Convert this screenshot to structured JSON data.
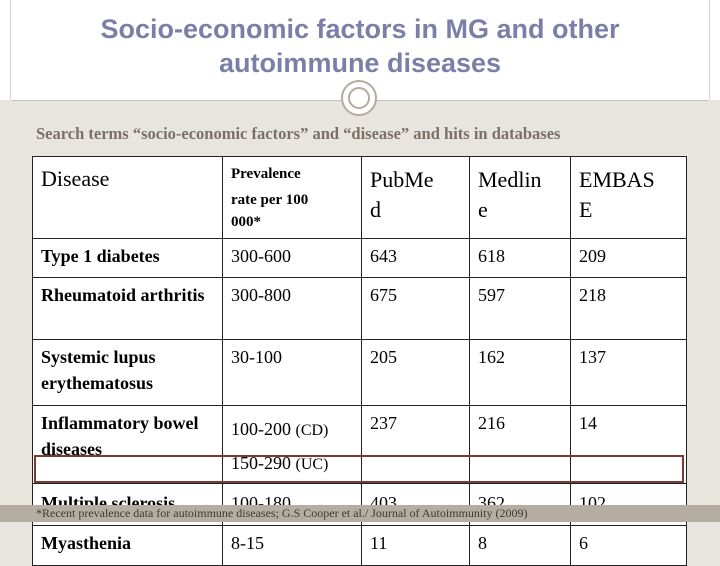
{
  "title_line1": "Socio-economic factors in MG and other",
  "title_line2": "autoimmune diseases",
  "subtitle": "Search terms “socio-economic factors” and “disease” and hits in databases",
  "table": {
    "headers": {
      "disease": "Disease",
      "prevalence_line1": "Prevalence",
      "prevalence_line2": "rate per 100",
      "prevalence_line3": "000*",
      "pubmed_line1": "PubMe",
      "pubmed_line2": "d",
      "medline_line1": "Medlin",
      "medline_line2": "e",
      "embase_line1": "EMBAS",
      "embase_line2": "E"
    },
    "rows": [
      {
        "disease": "Type 1 diabetes",
        "prevalence": "300-600",
        "pubmed": "643",
        "medline": "618",
        "embase": "209"
      },
      {
        "disease": "Rheumatoid arthritis",
        "prevalence": "300-800",
        "pubmed": "675",
        "medline": "597",
        "embase": "218"
      },
      {
        "disease": "Systemic lupus erythematosus",
        "prevalence": "30-100",
        "pubmed": "205",
        "medline": "162",
        "embase": "137"
      },
      {
        "disease": "Inflammatory bowel diseases",
        "prevalence_a": "100-200",
        "prevalence_a_note": "(CD)",
        "prevalence_b": "150-290",
        "prevalence_b_note": "(UC)",
        "pubmed": "237",
        "medline": "216",
        "embase": "14"
      },
      {
        "disease": "Multiple sclerosis",
        "prevalence": "100-180",
        "pubmed": "403",
        "medline": "362",
        "embase": "102"
      },
      {
        "disease": "Myasthenia",
        "prevalence": "8-15",
        "pubmed": "11",
        "medline": "8",
        "embase": "6"
      }
    ]
  },
  "footnote": "*Recent prevalence data for autoimmune diseases; G.S Cooper et al./ Journal of Autoimmunity (2009)"
}
